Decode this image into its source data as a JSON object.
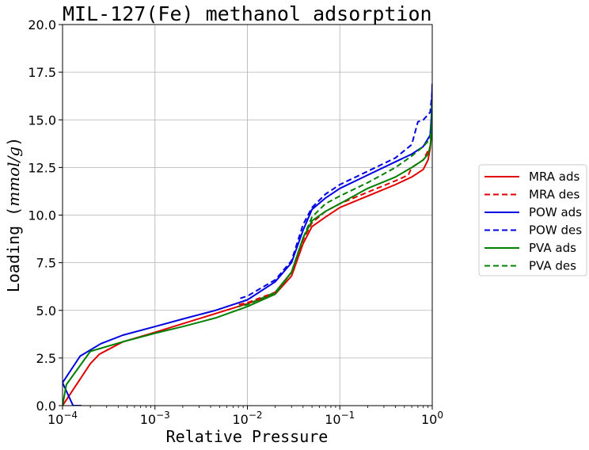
{
  "chart_data": {
    "type": "line",
    "title": "MIL-127(Fe) methanol adsorption",
    "xlabel": "Relative Pressure",
    "ylabel_text": "Loading (",
    "ylabel_math": "mmol/g",
    "ylabel_close": ")",
    "x_scale": "log",
    "xlim": [
      0.0001,
      1
    ],
    "ylim": [
      0,
      20
    ],
    "grid": true,
    "legend_position": "right",
    "x_ticks": [
      {
        "value": 0.0001,
        "base": "10",
        "exp": "−4"
      },
      {
        "value": 0.001,
        "base": "10",
        "exp": "−3"
      },
      {
        "value": 0.01,
        "base": "10",
        "exp": "−2"
      },
      {
        "value": 0.1,
        "base": "10",
        "exp": "−1"
      },
      {
        "value": 1,
        "base": "10",
        "exp": "0"
      }
    ],
    "y_ticks": [
      {
        "value": 0,
        "label": "0.0"
      },
      {
        "value": 2.5,
        "label": "2.5"
      },
      {
        "value": 5,
        "label": "5.0"
      },
      {
        "value": 7.5,
        "label": "7.5"
      },
      {
        "value": 10,
        "label": "10.0"
      },
      {
        "value": 12.5,
        "label": "12.5"
      },
      {
        "value": 15,
        "label": "15.0"
      },
      {
        "value": 17.5,
        "label": "17.5"
      },
      {
        "value": 20,
        "label": "20.0"
      }
    ],
    "series": [
      {
        "name": "MRA ads",
        "color": "#e00000",
        "style": "solid",
        "x": [
          0.0001,
          0.0002,
          0.00025,
          0.00045,
          0.001,
          0.002,
          0.005,
          0.01,
          0.02,
          0.03,
          0.04,
          0.05,
          0.07,
          0.1,
          0.2,
          0.4,
          0.6,
          0.8,
          0.9,
          0.95,
          0.98,
          1.0
        ],
        "y": [
          0,
          2.2,
          2.7,
          3.35,
          3.85,
          4.3,
          4.9,
          5.35,
          5.85,
          6.8,
          8.5,
          9.4,
          9.9,
          10.4,
          11.0,
          11.6,
          12.0,
          12.4,
          12.9,
          13.5,
          14.2,
          14.5
        ]
      },
      {
        "name": "MRA des",
        "color": "#e00000",
        "style": "dashed",
        "x": [
          1.0,
          0.95,
          0.8,
          0.6,
          0.55,
          0.4,
          0.2,
          0.1,
          0.07,
          0.05,
          0.04,
          0.03,
          0.02,
          0.01,
          0.008
        ],
        "y": [
          14.7,
          13.6,
          12.9,
          12.5,
          12.1,
          11.8,
          11.2,
          10.6,
          10.2,
          9.6,
          8.7,
          7.0,
          5.95,
          5.4,
          5.3
        ]
      },
      {
        "name": "POW ads",
        "color": "#0000e0",
        "style": "solid",
        "x": [
          0.00016,
          0.00013,
          0.0001,
          0.000155,
          0.00026,
          0.00045,
          0.001,
          0.002,
          0.0045,
          0.01,
          0.02,
          0.03,
          0.04,
          0.05,
          0.07,
          0.1,
          0.2,
          0.4,
          0.6,
          0.8,
          0.95,
          0.98,
          1.0
        ],
        "y": [
          0,
          0,
          1.2,
          2.6,
          3.25,
          3.7,
          4.15,
          4.55,
          5.0,
          5.55,
          6.5,
          7.5,
          9.2,
          10.3,
          10.9,
          11.4,
          12.1,
          12.8,
          13.2,
          13.6,
          14.2,
          15.2,
          16.9
        ]
      },
      {
        "name": "POW des",
        "color": "#0000e0",
        "style": "dashed",
        "x": [
          1.0,
          0.95,
          0.8,
          0.7,
          0.6,
          0.4,
          0.2,
          0.1,
          0.07,
          0.05,
          0.04,
          0.03,
          0.02,
          0.01,
          0.008
        ],
        "y": [
          16.5,
          15.4,
          15.0,
          14.9,
          13.7,
          13.0,
          12.3,
          11.6,
          11.1,
          10.4,
          9.5,
          7.6,
          6.6,
          5.75,
          5.6
        ]
      },
      {
        "name": "PVA ads",
        "color": "#008000",
        "style": "solid",
        "x": [
          0.0001,
          0.00011,
          0.0002,
          0.00045,
          0.001,
          0.002,
          0.0045,
          0.01,
          0.02,
          0.03,
          0.04,
          0.05,
          0.07,
          0.1,
          0.2,
          0.4,
          0.6,
          0.8,
          0.9,
          0.95,
          0.98,
          1.0
        ],
        "y": [
          0,
          1.1,
          2.85,
          3.35,
          3.8,
          4.15,
          4.6,
          5.2,
          5.85,
          7.0,
          8.8,
          9.7,
          10.2,
          10.6,
          11.4,
          12.0,
          12.5,
          12.9,
          13.2,
          13.6,
          14.3,
          16.0
        ]
      },
      {
        "name": "PVA des",
        "color": "#008000",
        "style": "dashed",
        "x": [
          1.0,
          0.95,
          0.8,
          0.6,
          0.4,
          0.2,
          0.1,
          0.07,
          0.05,
          0.04,
          0.03,
          0.02,
          0.01,
          0.008
        ],
        "y": [
          15.2,
          14.0,
          13.6,
          13.1,
          12.5,
          11.7,
          11.0,
          10.6,
          9.9,
          8.8,
          7.0,
          5.95,
          5.3,
          5.2
        ]
      }
    ]
  }
}
